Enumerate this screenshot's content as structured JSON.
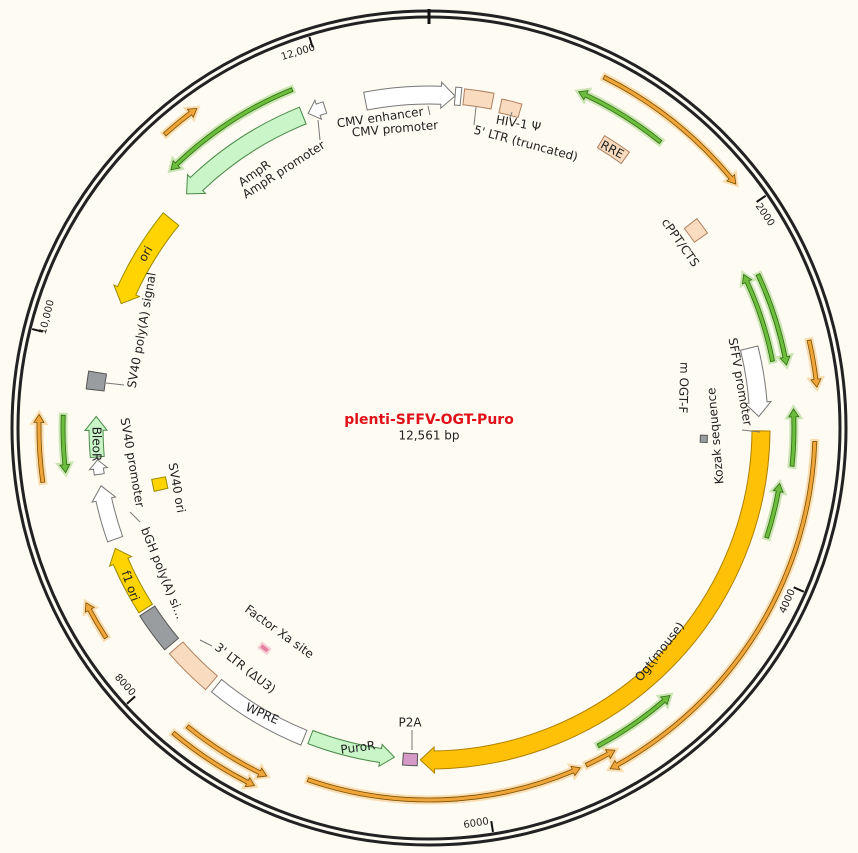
{
  "plasmid": {
    "name": "plenti-SFFV-OGT-Puro",
    "length": "12,561 bp"
  },
  "scale_labels": [
    "12,000",
    "2000",
    "4000",
    "6000",
    "8000",
    "10,000"
  ],
  "features": [
    "CMV enhancer",
    "CMV promoter",
    "HIV-1 Ψ",
    "5' LTR (truncated)",
    "RRE",
    "cPPT/CTS",
    "SFFV promoter",
    "Kozak sequence",
    "m OGT-F",
    "Ogt(mouse)",
    "P2A",
    "PuroR",
    "WPRE",
    "3' LTR (ΔU3)",
    "Factor Xa site",
    "bGH poly(A) si...",
    "f1 ori",
    "SV40 ori",
    "SV40 promoter",
    "BleoR",
    "SV40 poly(A) signal",
    "ori",
    "AmpR",
    "AmpR promoter"
  ]
}
